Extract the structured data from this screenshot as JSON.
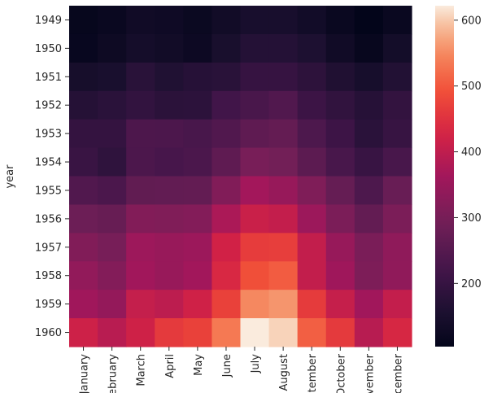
{
  "chart_data": {
    "type": "heatmap",
    "title": "",
    "xlabel": "",
    "ylabel": "year",
    "rows": [
      "1949",
      "1950",
      "1951",
      "1952",
      "1953",
      "1954",
      "1955",
      "1956",
      "1957",
      "1958",
      "1959",
      "1960"
    ],
    "x_tick_labels": [
      "January",
      "February",
      "March",
      "April",
      "May",
      "June",
      "July",
      "August",
      "September",
      "October",
      "November",
      "December"
    ],
    "values": [
      [
        112,
        118,
        132,
        129,
        121,
        135,
        148,
        148,
        136,
        119,
        104,
        118
      ],
      [
        115,
        126,
        141,
        135,
        125,
        149,
        170,
        170,
        158,
        133,
        114,
        140
      ],
      [
        145,
        150,
        178,
        163,
        172,
        178,
        199,
        199,
        184,
        162,
        146,
        166
      ],
      [
        171,
        180,
        193,
        181,
        183,
        218,
        230,
        242,
        209,
        191,
        172,
        194
      ],
      [
        196,
        196,
        236,
        235,
        229,
        243,
        264,
        272,
        237,
        211,
        180,
        201
      ],
      [
        204,
        188,
        235,
        227,
        234,
        264,
        302,
        293,
        259,
        229,
        203,
        229
      ],
      [
        242,
        233,
        267,
        269,
        270,
        315,
        364,
        347,
        312,
        274,
        237,
        278
      ],
      [
        284,
        277,
        317,
        313,
        318,
        374,
        413,
        405,
        355,
        306,
        271,
        306
      ],
      [
        315,
        301,
        356,
        348,
        355,
        422,
        465,
        467,
        404,
        347,
        305,
        336
      ],
      [
        340,
        318,
        362,
        348,
        363,
        435,
        491,
        505,
        404,
        359,
        310,
        337
      ],
      [
        360,
        342,
        406,
        396,
        420,
        472,
        548,
        559,
        463,
        407,
        362,
        405
      ],
      [
        417,
        391,
        419,
        461,
        472,
        535,
        622,
        606,
        508,
        461,
        390,
        432
      ]
    ],
    "colorbar": {
      "min": 104,
      "max": 622,
      "ticks": [
        "200",
        "300",
        "400",
        "500",
        "600"
      ],
      "tick_values": [
        200,
        300,
        400,
        500,
        600
      ]
    },
    "colormap": "rocket"
  }
}
